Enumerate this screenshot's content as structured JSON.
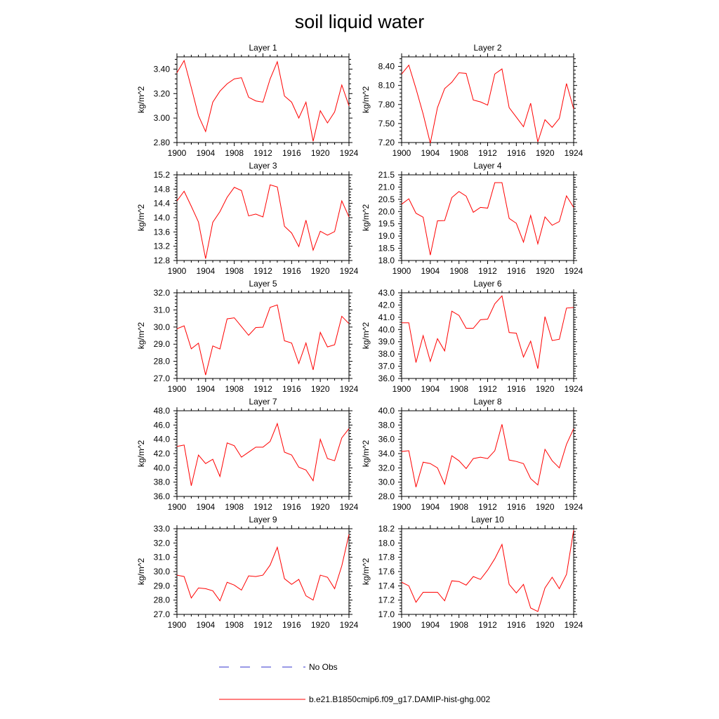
{
  "title": "soil liquid water",
  "colors": {
    "model_line": "#ff0000",
    "obs_line": "#3333cc",
    "axes": "#000000"
  },
  "legend": {
    "entries": [
      {
        "label": "No Obs",
        "style": "dashed",
        "color": "#3333cc"
      },
      {
        "label": "b.e21.B1850cmip6.f09_g17.DAMIP-hist-ghg.002",
        "style": "solid",
        "color": "#ff0000"
      }
    ]
  },
  "chart_data": [
    {
      "type": "line",
      "title": "Layer 1",
      "xlabel": "",
      "ylabel": "kg/m^2",
      "xlim": [
        1900,
        1924
      ],
      "ylim": [
        2.8,
        3.5
      ],
      "xticks": [
        "1900",
        "1904",
        "1908",
        "1912",
        "1916",
        "1920",
        "1924"
      ],
      "yticks": [
        "2.80",
        "3.00",
        "3.20",
        "3.40"
      ],
      "x": [
        1900,
        1901,
        1902,
        1903,
        1904,
        1905,
        1906,
        1907,
        1908,
        1909,
        1910,
        1911,
        1912,
        1913,
        1914,
        1915,
        1916,
        1917,
        1918,
        1919,
        1920,
        1921,
        1922,
        1923,
        1924
      ],
      "series": [
        {
          "values": [
            3.37,
            3.47,
            3.25,
            3.02,
            2.89,
            3.13,
            3.22,
            3.28,
            3.32,
            3.33,
            3.17,
            3.14,
            3.13,
            3.32,
            3.46,
            3.18,
            3.13,
            3.0,
            3.13,
            2.81,
            3.06,
            2.96,
            3.05,
            3.27,
            3.1
          ]
        }
      ]
    },
    {
      "type": "line",
      "title": "Layer 2",
      "xlabel": "",
      "ylabel": "kg/m^2",
      "xlim": [
        1900,
        1924
      ],
      "ylim": [
        7.2,
        8.55
      ],
      "xticks": [
        "1900",
        "1904",
        "1908",
        "1912",
        "1916",
        "1920",
        "1924"
      ],
      "yticks": [
        "7.20",
        "7.50",
        "7.80",
        "8.10",
        "8.40"
      ],
      "x": [
        1900,
        1901,
        1902,
        1903,
        1904,
        1905,
        1906,
        1907,
        1908,
        1909,
        1910,
        1911,
        1912,
        1913,
        1914,
        1915,
        1916,
        1917,
        1918,
        1919,
        1920,
        1921,
        1922,
        1923,
        1924
      ],
      "series": [
        {
          "values": [
            8.28,
            8.42,
            8.05,
            7.65,
            7.19,
            7.75,
            8.05,
            8.15,
            8.3,
            8.29,
            7.87,
            7.84,
            7.79,
            8.28,
            8.36,
            7.75,
            7.6,
            7.45,
            7.82,
            7.21,
            7.56,
            7.44,
            7.58,
            8.13,
            7.73
          ]
        }
      ]
    },
    {
      "type": "line",
      "title": "Layer 3",
      "xlabel": "",
      "ylabel": "kg/m^2",
      "xlim": [
        1900,
        1924
      ],
      "ylim": [
        12.8,
        15.2
      ],
      "xticks": [
        "1900",
        "1904",
        "1908",
        "1912",
        "1916",
        "1920",
        "1924"
      ],
      "yticks": [
        "12.8",
        "13.2",
        "13.6",
        "14.0",
        "14.4",
        "14.8",
        "15.2"
      ],
      "x": [
        1900,
        1901,
        1902,
        1903,
        1904,
        1905,
        1906,
        1907,
        1908,
        1909,
        1910,
        1911,
        1912,
        1913,
        1914,
        1915,
        1916,
        1917,
        1918,
        1919,
        1920,
        1921,
        1922,
        1923,
        1924
      ],
      "series": [
        {
          "values": [
            14.47,
            14.74,
            14.32,
            13.88,
            12.85,
            13.87,
            14.17,
            14.57,
            14.85,
            14.76,
            14.05,
            14.1,
            14.02,
            14.92,
            14.86,
            13.76,
            13.57,
            13.19,
            13.93,
            13.09,
            13.62,
            13.51,
            13.61,
            14.47,
            14.02
          ]
        }
      ]
    },
    {
      "type": "line",
      "title": "Layer 4",
      "xlabel": "",
      "ylabel": "kg/m^2",
      "xlim": [
        1900,
        1924
      ],
      "ylim": [
        18.0,
        21.5
      ],
      "xticks": [
        "1900",
        "1904",
        "1908",
        "1912",
        "1916",
        "1920",
        "1924"
      ],
      "yticks": [
        "18.0",
        "18.5",
        "19.0",
        "19.5",
        "20.0",
        "20.5",
        "21.0",
        "21.5"
      ],
      "x": [
        1900,
        1901,
        1902,
        1903,
        1904,
        1905,
        1906,
        1907,
        1908,
        1909,
        1910,
        1911,
        1912,
        1913,
        1914,
        1915,
        1916,
        1917,
        1918,
        1919,
        1920,
        1921,
        1922,
        1923,
        1924
      ],
      "series": [
        {
          "values": [
            20.3,
            20.52,
            19.93,
            19.77,
            18.22,
            19.62,
            19.63,
            20.57,
            20.82,
            20.63,
            19.97,
            20.17,
            20.14,
            21.18,
            21.18,
            19.72,
            19.52,
            18.75,
            19.84,
            18.68,
            19.78,
            19.44,
            19.59,
            20.64,
            20.17
          ]
        }
      ]
    },
    {
      "type": "line",
      "title": "Layer 5",
      "xlabel": "",
      "ylabel": "kg/m^2",
      "xlim": [
        1900,
        1924
      ],
      "ylim": [
        27.0,
        32.0
      ],
      "xticks": [
        "1900",
        "1904",
        "1908",
        "1912",
        "1916",
        "1920",
        "1924"
      ],
      "yticks": [
        "27.0",
        "28.0",
        "29.0",
        "30.0",
        "31.0",
        "32.0"
      ],
      "x": [
        1900,
        1901,
        1902,
        1903,
        1904,
        1905,
        1906,
        1907,
        1908,
        1909,
        1910,
        1911,
        1912,
        1913,
        1914,
        1915,
        1916,
        1917,
        1918,
        1919,
        1920,
        1921,
        1922,
        1923,
        1924
      ],
      "series": [
        {
          "values": [
            29.9,
            30.07,
            28.73,
            29.06,
            27.2,
            28.9,
            28.72,
            30.48,
            30.54,
            30.03,
            29.52,
            29.97,
            29.99,
            31.15,
            31.29,
            29.2,
            29.07,
            27.87,
            29.07,
            27.5,
            29.69,
            28.84,
            28.97,
            30.63,
            30.2
          ]
        }
      ]
    },
    {
      "type": "line",
      "title": "Layer 6",
      "xlabel": "",
      "ylabel": "kg/m^2",
      "xlim": [
        1900,
        1924
      ],
      "ylim": [
        36.0,
        43.0
      ],
      "xticks": [
        "1900",
        "1904",
        "1908",
        "1912",
        "1916",
        "1920",
        "1924"
      ],
      "yticks": [
        "36.0",
        "37.0",
        "38.0",
        "39.0",
        "40.0",
        "41.0",
        "42.0",
        "43.0"
      ],
      "x": [
        1900,
        1901,
        1902,
        1903,
        1904,
        1905,
        1906,
        1907,
        1908,
        1909,
        1910,
        1911,
        1912,
        1913,
        1914,
        1915,
        1916,
        1917,
        1918,
        1919,
        1920,
        1921,
        1922,
        1923,
        1924
      ],
      "series": [
        {
          "values": [
            40.55,
            40.55,
            37.3,
            39.5,
            37.4,
            39.25,
            38.25,
            41.5,
            41.15,
            40.1,
            40.1,
            40.8,
            40.85,
            42.1,
            42.75,
            39.75,
            39.7,
            37.75,
            39.05,
            36.8,
            41.05,
            39.1,
            39.2,
            41.75,
            41.8
          ]
        }
      ]
    },
    {
      "type": "line",
      "title": "Layer 7",
      "xlabel": "",
      "ylabel": "kg/m^2",
      "xlim": [
        1900,
        1924
      ],
      "ylim": [
        36.0,
        48.0
      ],
      "xticks": [
        "1900",
        "1904",
        "1908",
        "1912",
        "1916",
        "1920",
        "1924"
      ],
      "yticks": [
        "36.0",
        "38.0",
        "40.0",
        "42.0",
        "44.0",
        "46.0",
        "48.0"
      ],
      "x": [
        1900,
        1901,
        1902,
        1903,
        1904,
        1905,
        1906,
        1907,
        1908,
        1909,
        1910,
        1911,
        1912,
        1913,
        1914,
        1915,
        1916,
        1917,
        1918,
        1919,
        1920,
        1921,
        1922,
        1923,
        1924
      ],
      "series": [
        {
          "values": [
            43.0,
            43.2,
            37.5,
            41.8,
            40.6,
            41.2,
            38.8,
            43.5,
            43.1,
            41.5,
            42.2,
            42.9,
            42.9,
            43.7,
            46.2,
            42.2,
            41.8,
            40.1,
            39.7,
            38.2,
            44.0,
            41.3,
            41.0,
            44.2,
            45.5
          ]
        }
      ]
    },
    {
      "type": "line",
      "title": "Layer 8",
      "xlabel": "",
      "ylabel": "kg/m^2",
      "xlim": [
        1900,
        1924
      ],
      "ylim": [
        28.0,
        40.0
      ],
      "xticks": [
        "1900",
        "1904",
        "1908",
        "1912",
        "1916",
        "1920",
        "1924"
      ],
      "yticks": [
        "28.0",
        "30.0",
        "32.0",
        "34.0",
        "36.0",
        "38.0",
        "40.0"
      ],
      "x": [
        1900,
        1901,
        1902,
        1903,
        1904,
        1905,
        1906,
        1907,
        1908,
        1909,
        1910,
        1911,
        1912,
        1913,
        1914,
        1915,
        1916,
        1917,
        1918,
        1919,
        1920,
        1921,
        1922,
        1923,
        1924
      ],
      "series": [
        {
          "values": [
            34.3,
            34.4,
            29.3,
            32.8,
            32.6,
            32.0,
            29.7,
            33.7,
            33.0,
            31.9,
            33.3,
            33.5,
            33.3,
            34.4,
            38.1,
            33.1,
            32.9,
            32.6,
            30.5,
            29.6,
            34.6,
            33.0,
            32.0,
            35.3,
            37.5
          ]
        }
      ]
    },
    {
      "type": "line",
      "title": "Layer 9",
      "xlabel": "",
      "ylabel": "kg/m^2",
      "xlim": [
        1900,
        1924
      ],
      "ylim": [
        27.0,
        33.0
      ],
      "xticks": [
        "1900",
        "1904",
        "1908",
        "1912",
        "1916",
        "1920",
        "1924"
      ],
      "yticks": [
        "27.0",
        "28.0",
        "29.0",
        "30.0",
        "31.0",
        "32.0",
        "33.0"
      ],
      "x": [
        1900,
        1901,
        1902,
        1903,
        1904,
        1905,
        1906,
        1907,
        1908,
        1909,
        1910,
        1911,
        1912,
        1913,
        1914,
        1915,
        1916,
        1917,
        1918,
        1919,
        1920,
        1921,
        1922,
        1923,
        1924
      ],
      "series": [
        {
          "values": [
            29.75,
            29.65,
            28.15,
            28.85,
            28.8,
            28.65,
            27.95,
            29.25,
            29.05,
            28.7,
            29.7,
            29.65,
            29.75,
            30.45,
            31.7,
            29.5,
            29.1,
            29.45,
            28.3,
            28.0,
            29.75,
            29.6,
            28.8,
            30.4,
            32.6
          ]
        }
      ]
    },
    {
      "type": "line",
      "title": "Layer 10",
      "xlabel": "",
      "ylabel": "kg/m^2",
      "xlim": [
        1900,
        1924
      ],
      "ylim": [
        17.0,
        18.2
      ],
      "xticks": [
        "1900",
        "1904",
        "1908",
        "1912",
        "1916",
        "1920",
        "1924"
      ],
      "yticks": [
        "17.0",
        "17.2",
        "17.4",
        "17.6",
        "17.8",
        "18.0",
        "18.2"
      ],
      "x": [
        1900,
        1901,
        1902,
        1903,
        1904,
        1905,
        1906,
        1907,
        1908,
        1909,
        1910,
        1911,
        1912,
        1913,
        1914,
        1915,
        1916,
        1917,
        1918,
        1919,
        1920,
        1921,
        1922,
        1923,
        1924
      ],
      "series": [
        {
          "values": [
            17.45,
            17.4,
            17.17,
            17.31,
            17.31,
            17.31,
            17.19,
            17.47,
            17.46,
            17.41,
            17.53,
            17.49,
            17.62,
            17.78,
            17.98,
            17.42,
            17.3,
            17.42,
            17.09,
            17.04,
            17.37,
            17.52,
            17.36,
            17.56,
            18.18
          ]
        }
      ]
    }
  ]
}
